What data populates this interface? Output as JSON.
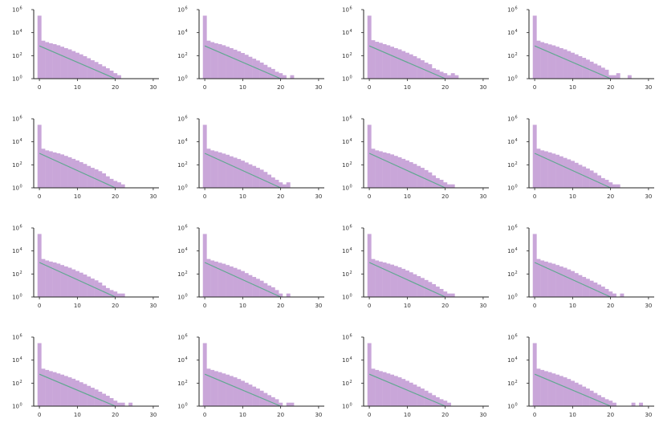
{
  "style": {
    "bar_color": "#c9a6d9",
    "line_color": "#5fa88f",
    "axis_color": "#222222"
  },
  "axes_common": {
    "type": "bar",
    "xlim": [
      -1.5,
      31.5
    ],
    "xticks": [
      "0",
      "10",
      "20",
      "30"
    ],
    "ylog": true,
    "ylim": [
      1,
      1000000
    ],
    "ytick_values": [
      1,
      100,
      10000,
      1000000
    ],
    "ytick_labels": [
      "10",
      "10",
      "10",
      "10"
    ],
    "ytick_exps": [
      "0",
      "2",
      "4",
      "6"
    ],
    "bins": [
      0,
      1,
      2,
      3,
      4,
      5,
      6,
      7,
      8,
      9,
      10,
      11,
      12,
      13,
      14,
      15,
      16,
      17,
      18,
      19,
      20,
      21,
      22,
      23,
      24,
      25,
      26,
      27,
      28,
      29,
      30
    ]
  },
  "chart_data": [
    {
      "type": "bar",
      "line": [
        700,
        1
      ],
      "values": [
        300000,
        2000,
        1500,
        1200,
        1000,
        800,
        600,
        450,
        350,
        250,
        180,
        130,
        90,
        60,
        40,
        28,
        18,
        12,
        8,
        5,
        3,
        2,
        0,
        0,
        0,
        0,
        0,
        0,
        0,
        0,
        0
      ]
    },
    {
      "type": "bar",
      "line": [
        700,
        1
      ],
      "values": [
        300000,
        2000,
        1500,
        1200,
        1000,
        800,
        600,
        450,
        330,
        240,
        170,
        120,
        80,
        55,
        38,
        25,
        16,
        10,
        7,
        4,
        3,
        2,
        0,
        2,
        0,
        0,
        0,
        0,
        0,
        0,
        0
      ]
    },
    {
      "type": "bar",
      "line": [
        700,
        1
      ],
      "values": [
        300000,
        2200,
        1600,
        1300,
        1000,
        800,
        600,
        450,
        350,
        250,
        180,
        130,
        90,
        60,
        40,
        25,
        18,
        8,
        6,
        4,
        3,
        2,
        3,
        2,
        0,
        0,
        0,
        0,
        0,
        0,
        0
      ]
    },
    {
      "type": "bar",
      "line": [
        700,
        1
      ],
      "values": [
        300000,
        2000,
        1500,
        1200,
        950,
        780,
        600,
        450,
        350,
        250,
        180,
        130,
        90,
        65,
        45,
        30,
        20,
        14,
        9,
        6,
        2,
        2,
        3,
        0,
        0,
        2,
        0,
        0,
        0,
        0,
        0
      ]
    },
    {
      "type": "bar",
      "line": [
        1000,
        1
      ],
      "values": [
        300000,
        2500,
        1800,
        1500,
        1200,
        1000,
        800,
        600,
        450,
        330,
        240,
        170,
        120,
        80,
        55,
        40,
        28,
        18,
        10,
        6,
        4,
        3,
        2,
        0,
        0,
        0,
        0,
        0,
        0,
        0,
        0
      ]
    },
    {
      "type": "bar",
      "line": [
        1000,
        1
      ],
      "values": [
        300000,
        2500,
        1800,
        1500,
        1200,
        950,
        750,
        550,
        420,
        320,
        230,
        160,
        110,
        80,
        55,
        38,
        24,
        14,
        8,
        5,
        3,
        2,
        3,
        0,
        0,
        0,
        0,
        0,
        0,
        0,
        0
      ]
    },
    {
      "type": "bar",
      "line": [
        1000,
        1
      ],
      "values": [
        300000,
        2500,
        1800,
        1500,
        1200,
        1000,
        800,
        600,
        450,
        330,
        240,
        170,
        120,
        80,
        55,
        35,
        22,
        12,
        7,
        5,
        3,
        2,
        2,
        0,
        0,
        0,
        0,
        0,
        0,
        0,
        0
      ]
    },
    {
      "type": "bar",
      "line": [
        1000,
        1
      ],
      "values": [
        300000,
        2500,
        1800,
        1500,
        1200,
        950,
        750,
        550,
        400,
        300,
        220,
        150,
        100,
        70,
        48,
        32,
        20,
        12,
        7,
        5,
        3,
        2,
        2,
        0,
        0,
        0,
        0,
        0,
        0,
        0,
        0
      ]
    },
    {
      "type": "bar",
      "line": [
        1000,
        1
      ],
      "values": [
        300000,
        2000,
        1500,
        1200,
        1000,
        800,
        600,
        450,
        350,
        250,
        180,
        130,
        90,
        60,
        40,
        28,
        18,
        10,
        6,
        4,
        3,
        2,
        2,
        0,
        0,
        0,
        0,
        0,
        0,
        0,
        0
      ]
    },
    {
      "type": "bar",
      "line": [
        1000,
        1
      ],
      "values": [
        300000,
        2000,
        1500,
        1200,
        950,
        780,
        600,
        450,
        340,
        250,
        180,
        120,
        80,
        55,
        38,
        26,
        16,
        10,
        7,
        4,
        2,
        0,
        2,
        0,
        0,
        0,
        0,
        0,
        0,
        0,
        0
      ]
    },
    {
      "type": "bar",
      "line": [
        1000,
        1
      ],
      "values": [
        300000,
        2000,
        1500,
        1200,
        1000,
        800,
        650,
        500,
        380,
        280,
        200,
        140,
        95,
        65,
        45,
        30,
        20,
        13,
        8,
        5,
        3,
        2,
        2,
        0,
        0,
        0,
        0,
        0,
        0,
        0,
        0
      ]
    },
    {
      "type": "bar",
      "line": [
        1000,
        1
      ],
      "values": [
        300000,
        2000,
        1500,
        1200,
        950,
        780,
        600,
        450,
        350,
        250,
        180,
        120,
        80,
        55,
        38,
        26,
        18,
        12,
        8,
        5,
        3,
        2,
        0,
        2,
        0,
        0,
        0,
        0,
        0,
        0,
        0
      ]
    },
    {
      "type": "bar",
      "line": [
        600,
        1
      ],
      "values": [
        300000,
        1800,
        1400,
        1100,
        900,
        700,
        550,
        420,
        320,
        240,
        170,
        120,
        85,
        58,
        40,
        28,
        18,
        12,
        8,
        5,
        3,
        2,
        2,
        0,
        2,
        0,
        0,
        0,
        0,
        0,
        0
      ]
    },
    {
      "type": "bar",
      "line": [
        600,
        1
      ],
      "values": [
        300000,
        1800,
        1400,
        1100,
        900,
        700,
        550,
        420,
        320,
        230,
        160,
        110,
        75,
        50,
        34,
        22,
        14,
        9,
        6,
        4,
        2,
        0,
        2,
        2,
        0,
        0,
        0,
        0,
        0,
        0,
        0
      ]
    },
    {
      "type": "bar",
      "line": [
        600,
        1
      ],
      "values": [
        300000,
        1800,
        1400,
        1100,
        900,
        700,
        550,
        420,
        320,
        230,
        160,
        110,
        75,
        50,
        34,
        22,
        14,
        9,
        6,
        4,
        3,
        2,
        0,
        0,
        0,
        0,
        0,
        0,
        0,
        0,
        0
      ]
    },
    {
      "type": "bar",
      "line": [
        600,
        1
      ],
      "values": [
        300000,
        1800,
        1400,
        1100,
        900,
        700,
        550,
        420,
        320,
        230,
        160,
        110,
        75,
        50,
        34,
        22,
        14,
        9,
        6,
        4,
        3,
        2,
        0,
        0,
        0,
        0,
        2,
        0,
        2,
        0,
        0
      ]
    }
  ]
}
